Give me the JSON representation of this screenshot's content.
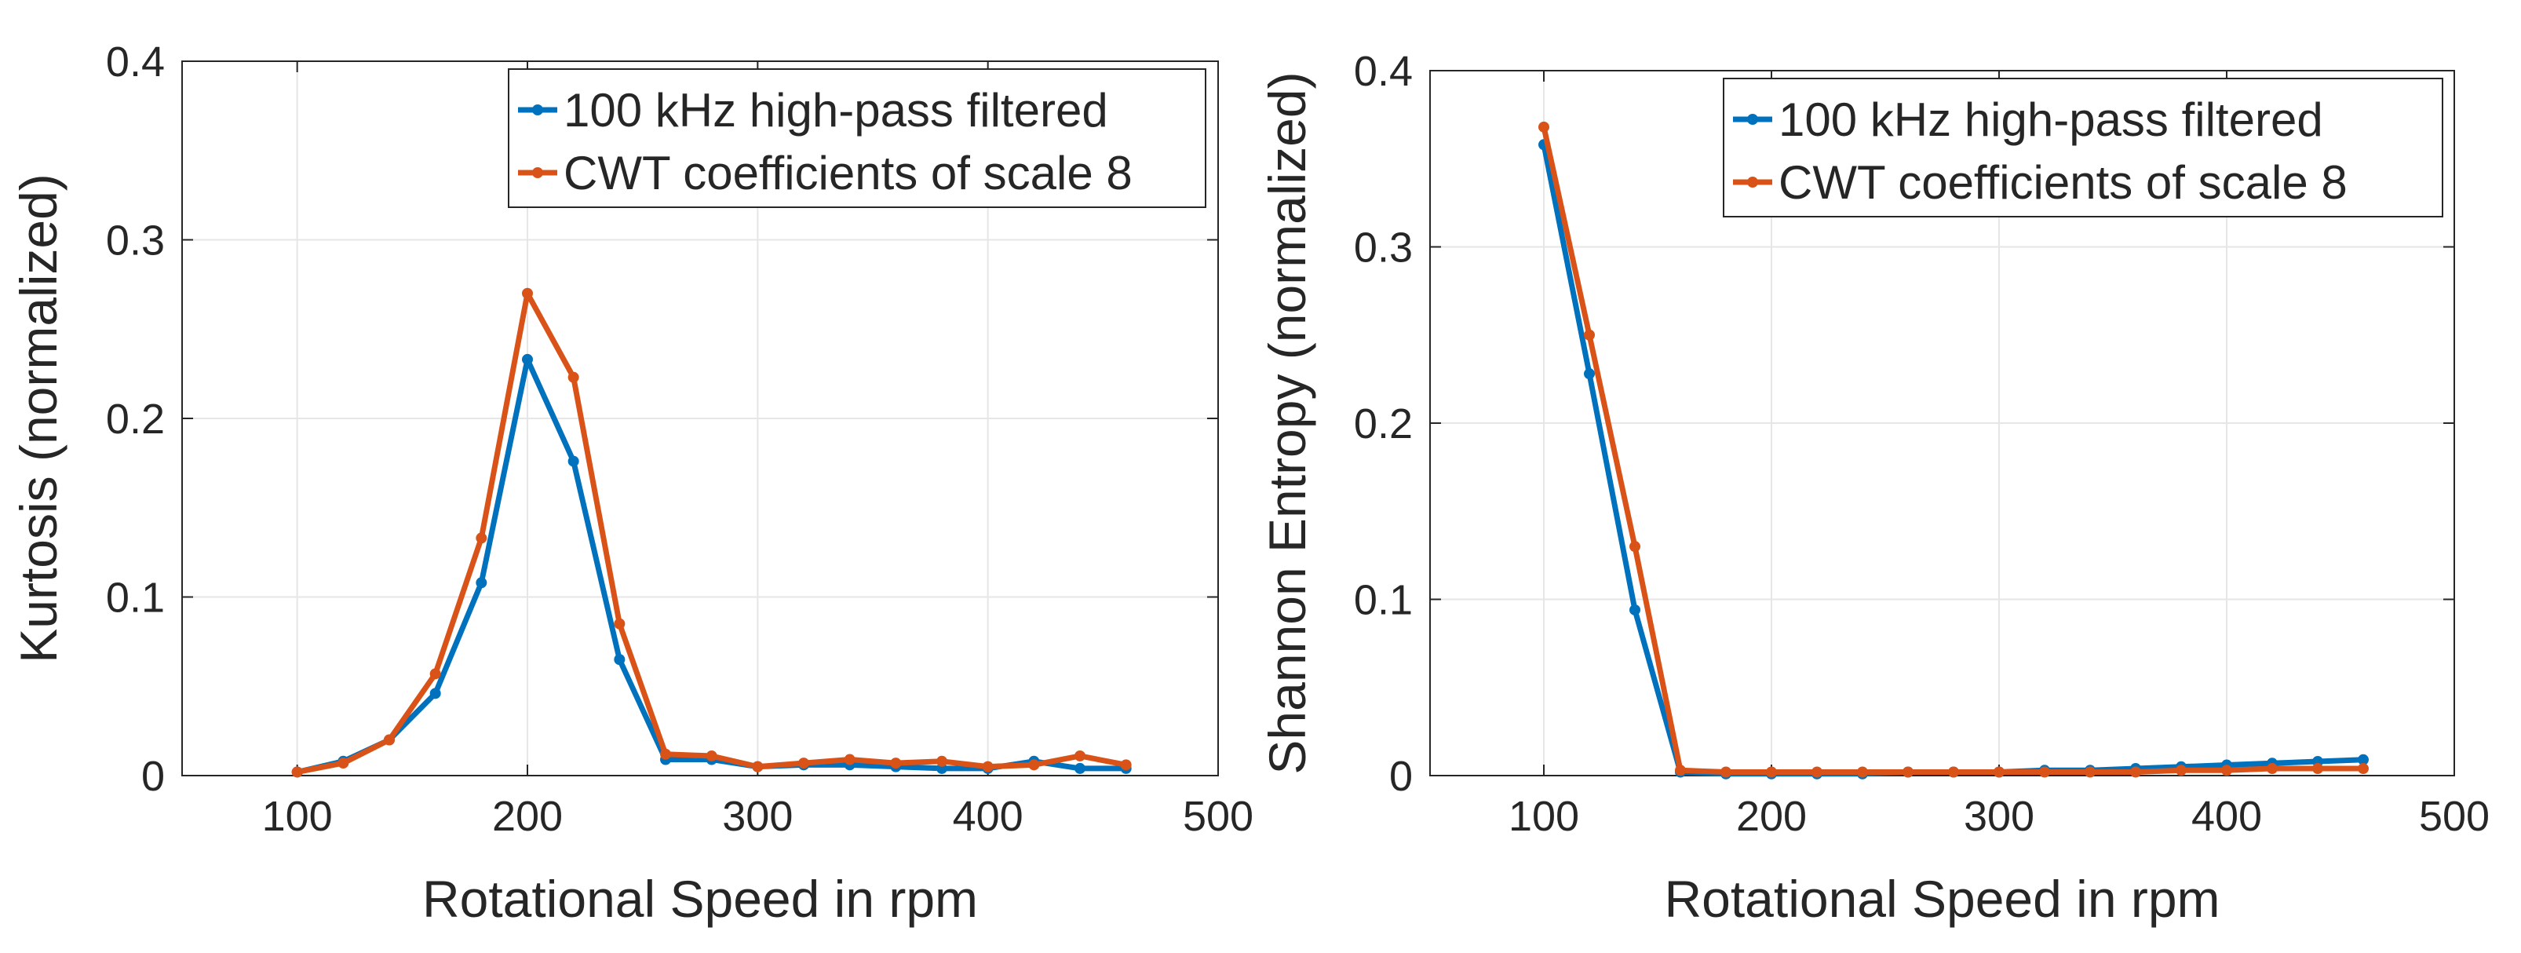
{
  "colors": {
    "series1": "#0072BD",
    "series2": "#D95319",
    "axis": "#262626",
    "grid": "#e6e6e6"
  },
  "chart_data": [
    {
      "type": "line",
      "xlabel": "Rotational Speed in rpm",
      "ylabel": "Kurtosis (normalized)",
      "xlim": [
        50,
        500
      ],
      "ylim": [
        0,
        0.4
      ],
      "xticks": [
        100,
        200,
        300,
        400,
        500
      ],
      "yticks": [
        0,
        0.1,
        0.2,
        0.3,
        0.4
      ],
      "xtick_labels": [
        "100",
        "200",
        "300",
        "400",
        "500"
      ],
      "ytick_labels": [
        "0",
        "0.1",
        "0.2",
        "0.3",
        "0.4"
      ],
      "grid": true,
      "legend_position": "top-right",
      "x": [
        100,
        120,
        140,
        160,
        180,
        200,
        220,
        240,
        260,
        280,
        300,
        320,
        340,
        360,
        380,
        400,
        420,
        440,
        460
      ],
      "series": [
        {
          "name": "100 kHz high-pass filtered",
          "color": "#0072BD",
          "values": [
            0.002,
            0.008,
            0.02,
            0.046,
            0.108,
            0.233,
            0.176,
            0.065,
            0.009,
            0.009,
            0.005,
            0.006,
            0.006,
            0.005,
            0.004,
            0.004,
            0.008,
            0.004,
            0.004
          ]
        },
        {
          "name": "CWT coefficients of scale 8",
          "color": "#D95319",
          "values": [
            0.002,
            0.007,
            0.02,
            0.057,
            0.133,
            0.27,
            0.223,
            0.085,
            0.012,
            0.011,
            0.005,
            0.007,
            0.009,
            0.007,
            0.008,
            0.005,
            0.006,
            0.011,
            0.006
          ]
        }
      ]
    },
    {
      "type": "line",
      "xlabel": "Rotational Speed in rpm",
      "ylabel": "Shannon Entropy (normalized)",
      "xlim": [
        50,
        500
      ],
      "ylim": [
        0,
        0.4
      ],
      "xticks": [
        100,
        200,
        300,
        400,
        500
      ],
      "yticks": [
        0,
        0.1,
        0.2,
        0.3,
        0.4
      ],
      "xtick_labels": [
        "100",
        "200",
        "300",
        "400",
        "500"
      ],
      "ytick_labels": [
        "0",
        "0.1",
        "0.2",
        "0.3",
        "0.4"
      ],
      "grid": true,
      "legend_position": "top-right",
      "x": [
        100,
        120,
        140,
        160,
        180,
        200,
        220,
        240,
        260,
        280,
        300,
        320,
        340,
        360,
        380,
        400,
        420,
        440,
        460
      ],
      "series": [
        {
          "name": "100 kHz high-pass filtered",
          "color": "#0072BD",
          "values": [
            0.358,
            0.228,
            0.094,
            0.002,
            0.001,
            0.001,
            0.001,
            0.001,
            0.002,
            0.002,
            0.002,
            0.003,
            0.003,
            0.004,
            0.005,
            0.006,
            0.007,
            0.008,
            0.009
          ]
        },
        {
          "name": "CWT coefficients of scale 8",
          "color": "#D95319",
          "values": [
            0.368,
            0.25,
            0.13,
            0.003,
            0.002,
            0.002,
            0.002,
            0.002,
            0.002,
            0.002,
            0.002,
            0.002,
            0.002,
            0.002,
            0.003,
            0.003,
            0.004,
            0.004,
            0.004
          ]
        }
      ]
    }
  ]
}
